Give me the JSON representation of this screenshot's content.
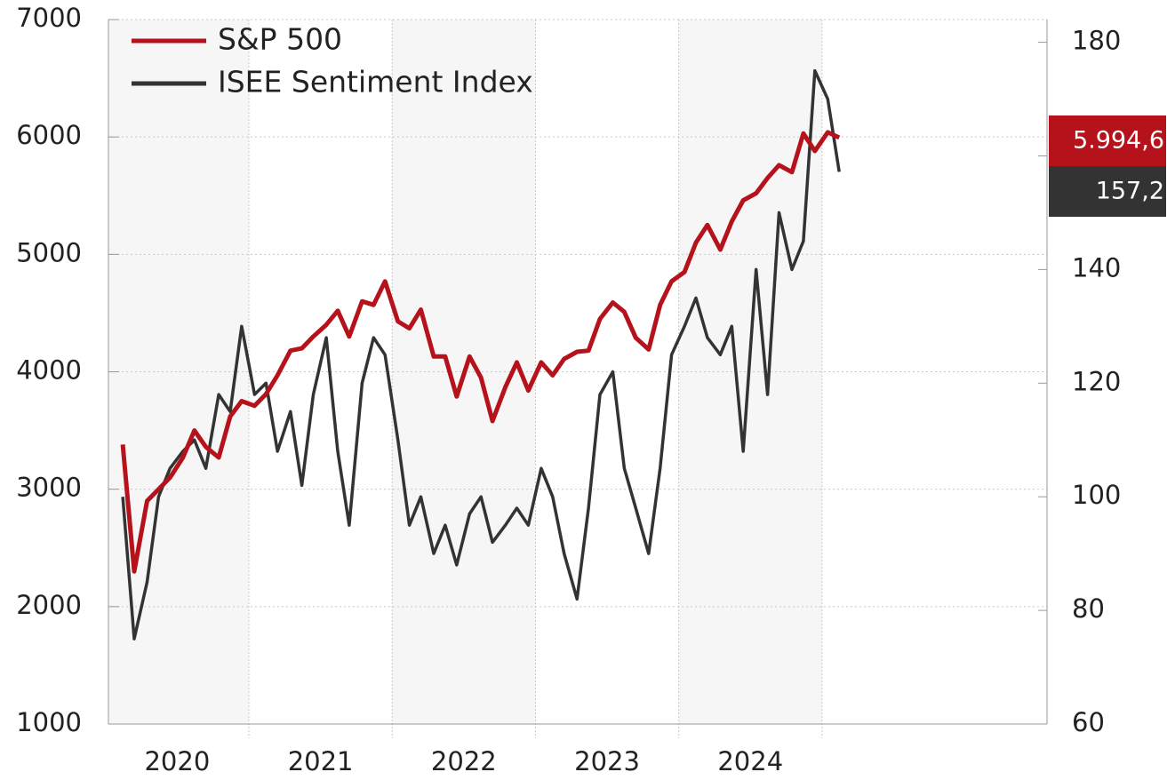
{
  "chart_data": {
    "type": "line",
    "x": [
      2020.12,
      2020.2,
      2020.29,
      2020.37,
      2020.45,
      2020.54,
      2020.62,
      2020.7,
      2020.79,
      2020.87,
      2020.95,
      2021.04,
      2021.12,
      2021.2,
      2021.29,
      2021.37,
      2021.45,
      2021.54,
      2021.62,
      2021.7,
      2021.79,
      2021.87,
      2021.95,
      2022.04,
      2022.12,
      2022.2,
      2022.29,
      2022.37,
      2022.45,
      2022.54,
      2022.62,
      2022.7,
      2022.79,
      2022.87,
      2022.95,
      2023.04,
      2023.12,
      2023.2,
      2023.29,
      2023.37,
      2023.45,
      2023.54,
      2023.62,
      2023.7,
      2023.79,
      2023.87,
      2023.95,
      2024.04,
      2024.12,
      2024.2,
      2024.29,
      2024.37,
      2024.45,
      2024.54,
      2024.62,
      2024.7,
      2024.79,
      2024.87,
      2024.95,
      2025.04,
      2025.12
    ],
    "series": [
      {
        "name": "S&P 500",
        "color": "#b5121b",
        "values": [
          3380,
          2300,
          2900,
          3000,
          3100,
          3270,
          3500,
          3360,
          3270,
          3620,
          3750,
          3710,
          3810,
          3970,
          4180,
          4200,
          4300,
          4400,
          4520,
          4300,
          4600,
          4570,
          4770,
          4430,
          4370,
          4530,
          4130,
          4130,
          3790,
          4130,
          3950,
          3580,
          3870,
          4080,
          3840,
          4080,
          3970,
          4110,
          4170,
          4180,
          4450,
          4590,
          4510,
          4290,
          4190,
          4570,
          4770,
          4850,
          5100,
          5250,
          5040,
          5280,
          5460,
          5520,
          5650,
          5760,
          5700,
          6030,
          5880,
          6040,
          5994.6
        ],
        "end_label": "5.994,6"
      },
      {
        "name": "ISEE Sentiment Index",
        "color": "#333333",
        "axis": "y2",
        "values": [
          100,
          75,
          85,
          100,
          105,
          108,
          110,
          105,
          118,
          115,
          130,
          118,
          120,
          108,
          115,
          102,
          118,
          128,
          108,
          95,
          120,
          128,
          125,
          110,
          95,
          100,
          90,
          95,
          88,
          97,
          100,
          92,
          95,
          98,
          95,
          105,
          100,
          90,
          82,
          98,
          118,
          122,
          105,
          98,
          90,
          105,
          125,
          130,
          135,
          128,
          125,
          130,
          108,
          140,
          118,
          150,
          140,
          145,
          175,
          170,
          157.2
        ],
        "end_label": "157,2"
      }
    ],
    "xlim": [
      2020.02,
      2026.57
    ],
    "xticks": [
      {
        "value": 2020.5,
        "label": "2020"
      },
      {
        "value": 2021.5,
        "label": "2021"
      },
      {
        "value": 2022.5,
        "label": "2022"
      },
      {
        "value": 2023.5,
        "label": "2023"
      },
      {
        "value": 2024.5,
        "label": "2024"
      }
    ],
    "xgrid": [
      2021,
      2022,
      2023,
      2024,
      2025
    ],
    "ylim": [
      1000,
      7000
    ],
    "yticks": [
      1000,
      2000,
      3000,
      4000,
      5000,
      6000,
      7000
    ],
    "y2lim": [
      60,
      184
    ],
    "y2ticks": [
      60,
      80,
      100,
      120,
      140,
      160,
      180
    ],
    "grid": true,
    "legend": "upper left"
  }
}
